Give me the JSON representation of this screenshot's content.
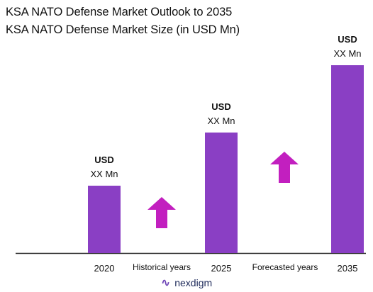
{
  "chart_data": {
    "type": "bar",
    "title": "KSA NATO Defense  Market Outlook to 2035",
    "subtitle": "KSA NATO Defense Market Size (in USD Mn)",
    "categories": [
      "2020",
      "2025",
      "2035"
    ],
    "values": [
      95,
      170,
      265
    ],
    "ylim": [
      0,
      270
    ],
    "bar_labels": [
      {
        "line1": "USD",
        "line2": "XX Mn"
      },
      {
        "line1": "USD",
        "line2": "XX Mn"
      },
      {
        "line1": "USD",
        "line2": "XX Mn"
      }
    ],
    "period_labels": [
      "Historical years",
      "Forecasted years"
    ],
    "colors": {
      "bar": "#8a3fc4",
      "arrow": "#c21fbf",
      "axis": "#222222"
    },
    "grid": false
  },
  "logo": {
    "text": "nexdigm",
    "icon": "nexdigm-logo-icon"
  }
}
